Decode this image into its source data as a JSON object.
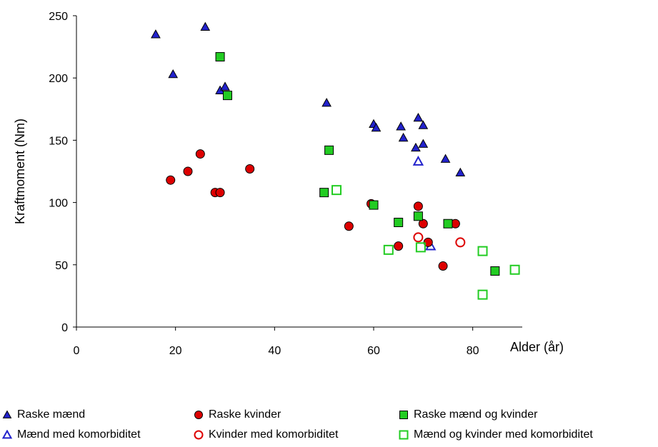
{
  "chart_data": {
    "type": "scatter",
    "title": "",
    "xlabel": "Alder (år)",
    "ylabel": "Kraftmoment (Nm)",
    "xlim": [
      0,
      90
    ],
    "ylim": [
      0,
      250
    ],
    "x_ticks": [
      0,
      20,
      40,
      60,
      80
    ],
    "y_ticks": [
      0,
      50,
      100,
      150,
      200,
      250
    ],
    "grid": false,
    "legend_position": "bottom",
    "series": [
      {
        "name": "Raske mænd",
        "marker": "triangle-filled",
        "color": "#2222cc",
        "points": [
          [
            16,
            235
          ],
          [
            19.5,
            203
          ],
          [
            26,
            241
          ],
          [
            29,
            190
          ],
          [
            30,
            193
          ],
          [
            50.5,
            180
          ],
          [
            60,
            163
          ],
          [
            60.5,
            160
          ],
          [
            65.5,
            161
          ],
          [
            66,
            152
          ],
          [
            68.5,
            144
          ],
          [
            69,
            168
          ],
          [
            70,
            162
          ],
          [
            70,
            147
          ],
          [
            74.5,
            135
          ],
          [
            77.5,
            124
          ]
        ]
      },
      {
        "name": "Mænd med komorbiditet",
        "marker": "triangle-open",
        "color": "#2222cc",
        "points": [
          [
            69,
            133
          ],
          [
            71.5,
            65
          ]
        ]
      },
      {
        "name": "Raske kvinder",
        "marker": "circle-filled",
        "color": "#dd0000",
        "points": [
          [
            19,
            118
          ],
          [
            22.5,
            125
          ],
          [
            25,
            139
          ],
          [
            28,
            108
          ],
          [
            29,
            108
          ],
          [
            35,
            127
          ],
          [
            55,
            81
          ],
          [
            59.5,
            99
          ],
          [
            65,
            65
          ],
          [
            69,
            97
          ],
          [
            70,
            83
          ],
          [
            71,
            68
          ],
          [
            74,
            49
          ],
          [
            76.5,
            83
          ]
        ]
      },
      {
        "name": "Kvinder med komorbiditet",
        "marker": "circle-open",
        "color": "#dd0000",
        "points": [
          [
            69,
            72
          ],
          [
            77.5,
            68
          ]
        ]
      },
      {
        "name": "Raske mænd og kvinder",
        "marker": "square-filled",
        "color": "#22cc22",
        "points": [
          [
            29,
            217
          ],
          [
            30.5,
            186
          ],
          [
            51,
            142
          ],
          [
            65,
            84
          ],
          [
            75,
            83
          ],
          [
            84.5,
            45
          ],
          [
            50,
            108
          ],
          [
            60,
            98
          ],
          [
            69,
            89
          ]
        ]
      },
      {
        "name": "Mænd og kvinder med komorbiditet",
        "marker": "square-open",
        "color": "#22cc22",
        "points": [
          [
            52.5,
            110
          ],
          [
            63,
            62
          ],
          [
            69.5,
            64
          ],
          [
            82,
            61
          ],
          [
            82,
            26
          ],
          [
            88.5,
            46
          ]
        ]
      }
    ]
  }
}
